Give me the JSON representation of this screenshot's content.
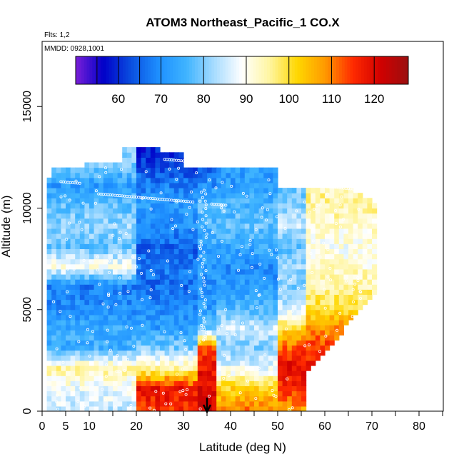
{
  "chart_data": {
    "type": "heatmap",
    "title": "ATOM3 Northeast_Pacific_1 CO.X",
    "annotations": [
      "Flts: 1,2",
      "MMDD: 0928,1001"
    ],
    "xlabel": "Latitude (deg N)",
    "ylabel": "Altitude (m)",
    "xlim": [
      0,
      85
    ],
    "ylim": [
      0,
      18000
    ],
    "x_ticks": [
      0,
      5,
      10,
      20,
      30,
      40,
      50,
      60,
      70,
      80
    ],
    "y_ticks": [
      0,
      5000,
      10000,
      15000
    ],
    "colorbar": {
      "range": [
        50,
        128
      ],
      "ticks": [
        60,
        70,
        80,
        90,
        100,
        110,
        120
      ],
      "colors": [
        "#7a1fd8",
        "#0000c8",
        "#0a4fe0",
        "#1e90ff",
        "#3fb4ff",
        "#a8dcff",
        "#ffffff",
        "#fff5a0",
        "#ffd700",
        "#ff9900",
        "#ff2a00",
        "#d10000",
        "#9a1010"
      ]
    },
    "profiles": [
      {
        "lat_min": 0,
        "lat_max": 20,
        "values": [
          [
            0,
            85
          ],
          [
            1000,
            88
          ],
          [
            2000,
            95
          ],
          [
            3000,
            75
          ],
          [
            4000,
            74
          ],
          [
            5000,
            70
          ],
          [
            6000,
            68
          ],
          [
            7000,
            90
          ],
          [
            8000,
            78
          ],
          [
            9000,
            82
          ],
          [
            10000,
            78
          ],
          [
            11000,
            72
          ],
          [
            12000,
            80
          ],
          [
            13000,
            null
          ]
        ]
      },
      {
        "lat_min": 20,
        "lat_max": 33,
        "values": [
          [
            0,
            115
          ],
          [
            1000,
            118
          ],
          [
            2000,
            95
          ],
          [
            3000,
            80
          ],
          [
            4000,
            72
          ],
          [
            5000,
            70
          ],
          [
            6000,
            66
          ],
          [
            7000,
            68
          ],
          [
            8000,
            65
          ],
          [
            9000,
            70
          ],
          [
            10000,
            72
          ],
          [
            11000,
            68
          ],
          [
            12000,
            62
          ],
          [
            13000,
            58
          ]
        ]
      },
      {
        "lat_min": 33,
        "lat_max": 37,
        "values": [
          [
            0,
            122
          ],
          [
            1000,
            120
          ],
          [
            2000,
            118
          ],
          [
            3000,
            112
          ],
          [
            4000,
            78
          ],
          [
            5000,
            72
          ],
          [
            6000,
            70
          ],
          [
            7000,
            72
          ],
          [
            8000,
            74
          ],
          [
            9000,
            76
          ],
          [
            10000,
            78
          ],
          [
            11000,
            70
          ],
          [
            12000,
            65
          ],
          [
            13000,
            null
          ]
        ]
      },
      {
        "lat_min": 37,
        "lat_max": 50,
        "values": [
          [
            0,
            110
          ],
          [
            1000,
            102
          ],
          [
            2000,
            88
          ],
          [
            3000,
            80
          ],
          [
            4000,
            85
          ],
          [
            5000,
            76
          ],
          [
            6000,
            72
          ],
          [
            7000,
            70
          ],
          [
            8000,
            74
          ],
          [
            9000,
            78
          ],
          [
            10000,
            76
          ],
          [
            11000,
            72
          ],
          [
            12000,
            null
          ],
          [
            13000,
            null
          ]
        ]
      },
      {
        "lat_min": 50,
        "lat_max": 56,
        "values": [
          [
            0,
            108
          ],
          [
            1000,
            115
          ],
          [
            2000,
            120
          ],
          [
            3000,
            112
          ],
          [
            4000,
            100
          ],
          [
            5000,
            85
          ],
          [
            6000,
            80
          ],
          [
            7000,
            82
          ],
          [
            8000,
            78
          ],
          [
            9000,
            85
          ],
          [
            10000,
            80
          ],
          [
            11000,
            null
          ],
          [
            12000,
            null
          ],
          [
            13000,
            null
          ]
        ]
      },
      {
        "lat_min": 56,
        "lat_max": 71,
        "values": [
          [
            0,
            null
          ],
          [
            1000,
            null
          ],
          [
            2000,
            118
          ],
          [
            3000,
            115
          ],
          [
            4000,
            108
          ],
          [
            5000,
            100
          ],
          [
            6000,
            95
          ],
          [
            7000,
            92
          ],
          [
            8000,
            90
          ],
          [
            9000,
            92
          ],
          [
            10000,
            95
          ],
          [
            11000,
            null
          ],
          [
            12000,
            null
          ],
          [
            13000,
            null
          ]
        ]
      }
    ],
    "flight_track_note": "Aircraft sample points (white circles) overlaid on curtain",
    "arrow_latitude": 35
  }
}
